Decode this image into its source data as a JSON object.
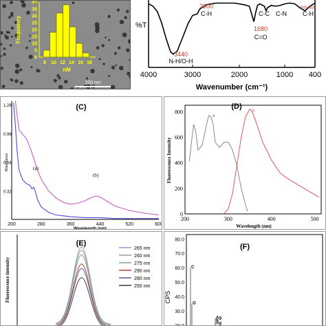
{
  "panel_a": {
    "scale_bar": "100 nm",
    "histogram": {
      "type": "bar",
      "ylabel": "Frequency",
      "xlabel": "nM",
      "x_ticks": [
        "8",
        "10",
        "12",
        "14",
        "16",
        "18"
      ],
      "y_ticks": [
        "0",
        "5",
        "10",
        "15",
        "20",
        "25",
        "30",
        "35",
        "40"
      ],
      "values": [
        5,
        18,
        32,
        38,
        22,
        10,
        3
      ],
      "ylim": [
        0,
        40
      ]
    },
    "colors": {
      "background": "#8b8b8b",
      "bars": "#ffff00",
      "text": "#ffff00"
    }
  },
  "chart_data": [
    {
      "panel": "B",
      "type": "line",
      "xlabel": "Wavenumber (cm⁻¹)",
      "ylabel": "%T",
      "x_ticks": [
        "4000",
        "3000",
        "2000",
        "1000",
        "400"
      ],
      "xlim": [
        4000,
        400
      ],
      "x": [
        4000,
        3900,
        3800,
        3700,
        3600,
        3500,
        3440,
        3350,
        3250,
        3100,
        3000,
        2900,
        2850,
        2700,
        2500,
        2300,
        2100,
        1900,
        1780,
        1720,
        1680,
        1640,
        1600,
        1550,
        1450,
        1410,
        1380,
        1300,
        1200,
        1100,
        1000,
        900,
        800,
        700,
        600,
        500,
        400
      ],
      "y": [
        95,
        92,
        85,
        70,
        50,
        33,
        30,
        34,
        48,
        70,
        80,
        82,
        88,
        94,
        96,
        96,
        96,
        94,
        92,
        80,
        72,
        84,
        93,
        95,
        92,
        86,
        90,
        93,
        92,
        93,
        95,
        96,
        95,
        90,
        86,
        92,
        96
      ],
      "annotations": [
        {
          "value": "2900",
          "label": "C-H"
        },
        {
          "value": "3440",
          "label": "N-H/O-H"
        },
        {
          "value": "1680",
          "label": "C=O"
        },
        {
          "value": "",
          "label": "C-C"
        },
        {
          "value": "",
          "label": "C-N"
        },
        {
          "value": "600-400",
          "label": "C-H"
        }
      ]
    },
    {
      "panel": "C",
      "title": "(C)",
      "type": "line",
      "xlabel": "Wavelength (nm)",
      "ylabel": "Absorbance",
      "x_ticks": [
        "200",
        "280",
        "360",
        "440",
        "520",
        "600"
      ],
      "y_ticks": [
        "0.32",
        "0.64",
        "0.96",
        "1.28"
      ],
      "xlim": [
        200,
        600
      ],
      "ylim": [
        0,
        1.32
      ],
      "series": [
        {
          "name": "(a)",
          "color": "#4b4bd8",
          "x": [
            205,
            210,
            215,
            220,
            230,
            240,
            250,
            255,
            260,
            265,
            270,
            280,
            300,
            320,
            340,
            360,
            400,
            440,
            480,
            520,
            560,
            600
          ],
          "y": [
            1.3,
            1.05,
            0.75,
            0.55,
            0.44,
            0.4,
            0.38,
            0.34,
            0.36,
            0.3,
            0.22,
            0.14,
            0.08,
            0.05,
            0.04,
            0.03,
            0.02,
            0.02,
            0.01,
            0.01,
            0.01,
            0.01
          ]
        },
        {
          "name": "(b)",
          "color": "#c060c0",
          "x": [
            210,
            215,
            220,
            230,
            240,
            250,
            260,
            270,
            280,
            300,
            320,
            340,
            360,
            380,
            400,
            420,
            430,
            440,
            460,
            480,
            520,
            560,
            600
          ],
          "y": [
            1.32,
            1.15,
            1.0,
            0.95,
            0.9,
            0.8,
            0.68,
            0.55,
            0.45,
            0.32,
            0.24,
            0.19,
            0.17,
            0.18,
            0.21,
            0.25,
            0.26,
            0.25,
            0.2,
            0.15,
            0.1,
            0.07,
            0.05
          ]
        }
      ],
      "labels": [
        "(a)",
        "(b)"
      ]
    },
    {
      "panel": "D",
      "title": "(D)",
      "type": "line",
      "xlabel": "Wavelength (nm)",
      "ylabel": "Fluorescence Intensity",
      "x_ticks": [
        "200",
        "300",
        "400",
        "500"
      ],
      "y_ticks": [
        "0",
        "200",
        "400",
        "600",
        "800"
      ],
      "xlim": [
        200,
        515
      ],
      "ylim": [
        0,
        850
      ],
      "series": [
        {
          "name": "a",
          "color": "#888888",
          "x": [
            210,
            215,
            220,
            225,
            230,
            240,
            250,
            255,
            260,
            265,
            270,
            280,
            290,
            300,
            310,
            320,
            330,
            340,
            345
          ],
          "y": [
            410,
            560,
            700,
            640,
            500,
            540,
            700,
            770,
            760,
            700,
            560,
            520,
            560,
            560,
            500,
            380,
            200,
            70,
            20
          ]
        },
        {
          "name": "b",
          "color": "#e05858",
          "x": [
            290,
            300,
            310,
            320,
            330,
            340,
            350,
            355,
            360,
            370,
            380,
            400,
            420,
            440,
            460,
            480,
            500,
            510
          ],
          "y": [
            0,
            40,
            160,
            380,
            600,
            760,
            820,
            800,
            760,
            660,
            560,
            420,
            320,
            270,
            230,
            190,
            150,
            130
          ]
        }
      ],
      "labels": [
        "a",
        "b"
      ]
    },
    {
      "panel": "E",
      "title": "(E)",
      "type": "line",
      "ylabel": "Fluorescence intensity",
      "legend": [
        "265 nm",
        "260 nm",
        "275 nm",
        "290 nm",
        "280 nm",
        "250 nm"
      ],
      "legend_colors": [
        "#8aa0c8",
        "#9a9a9a",
        "#80a880",
        "#b04040",
        "#6050a0",
        "#3a3a3a"
      ],
      "peak_values": [
        770,
        740,
        700,
        620,
        580,
        500
      ]
    },
    {
      "panel": "F",
      "title": "(F)",
      "type": "bar",
      "ylabel": "CPS",
      "y_ticks": [
        "20.0",
        "30.0",
        "40.0",
        "50.0",
        "60.0",
        "70.0",
        "80.0"
      ],
      "ylim": [
        18,
        83
      ],
      "peaks": [
        {
          "label": "C",
          "value": 60
        },
        {
          "label": "O",
          "value": 35
        },
        {
          "label": "Ag",
          "value": 25
        },
        {
          "label": "K",
          "value": 23
        },
        {
          "label": "Ag",
          "value": 21
        }
      ]
    }
  ]
}
